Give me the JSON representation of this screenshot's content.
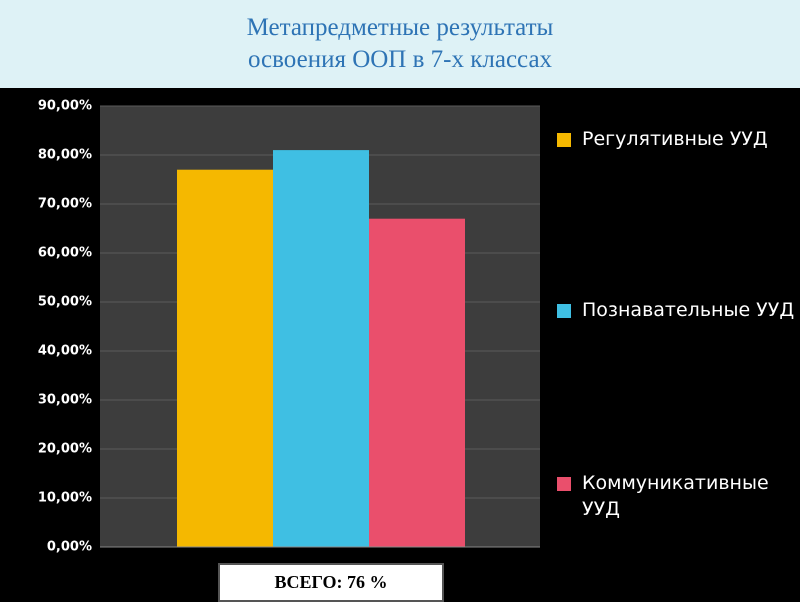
{
  "chart_data": {
    "type": "bar",
    "title": "Метапредметные результаты\nосвоения ООП  в 7-х классах",
    "series": [
      {
        "name": "Регулятивные УУД",
        "color": "#f5b800",
        "values": [
          77
        ]
      },
      {
        "name": "Познавательные УУД",
        "color": "#3fbfe3",
        "values": [
          81
        ]
      },
      {
        "name": "Коммуникативные УУД",
        "color": "#ea4f6c",
        "values": [
          67
        ]
      }
    ],
    "ylim": [
      0,
      90
    ],
    "yticks": [
      {
        "value": 0,
        "label": "0,00%"
      },
      {
        "value": 10,
        "label": "10,00%"
      },
      {
        "value": 20,
        "label": "20,00%"
      },
      {
        "value": 30,
        "label": "30,00%"
      },
      {
        "value": 40,
        "label": "40,00%"
      },
      {
        "value": 50,
        "label": "50,00%"
      },
      {
        "value": 60,
        "label": "60,00%"
      },
      {
        "value": 70,
        "label": "70,00%"
      },
      {
        "value": 80,
        "label": "80,00%"
      },
      {
        "value": 90,
        "label": "90,00%"
      }
    ],
    "grid": true,
    "legend": "right",
    "annotation": "ВСЕГО: 76 %"
  }
}
